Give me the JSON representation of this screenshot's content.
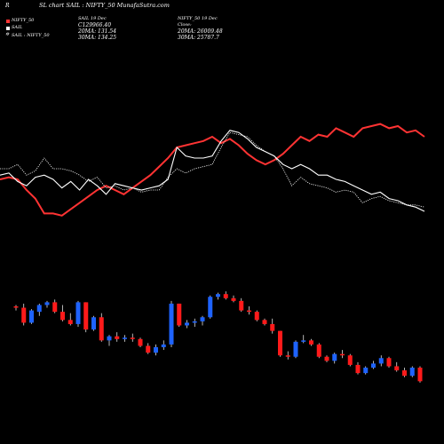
{
  "header": {
    "corner": "R",
    "title": "SL chart SAIL : NIFTY_50 MunafaSutra.com"
  },
  "legend": {
    "entry1": "NIFTY_50",
    "entry2": "SAIL",
    "entry3": "SAIL : NIFTY_50"
  },
  "sail_box": {
    "line1": "SAIL 19 Dec",
    "line2": "Close: 118.09",
    "line3": "20MA: 131.54",
    "line4": "30MA: 134.25",
    "overlap": "C129966.40"
  },
  "nifty_box": {
    "line1": "NIFTY_50 19 Dec",
    "line2": "Close:",
    "line3": "20MA: 26009.48",
    "line4": "30MA: 25787.7"
  },
  "colors": {
    "background": "#000000",
    "bull": "#1e63ff",
    "bear": "#ff1a1a",
    "ratio_line": "#ff3333",
    "sail_line": "#ffffff",
    "nifty_line": "#ffffff"
  },
  "chart_data": [
    {
      "type": "line",
      "x_count": 49,
      "series": [
        {
          "style": "red-thick",
          "values": [
            55,
            56,
            55,
            50,
            46,
            39,
            39,
            38,
            41,
            44,
            47,
            50,
            52,
            50,
            48,
            51,
            54,
            57,
            61,
            65,
            70,
            71,
            72,
            73,
            75,
            72,
            74,
            71,
            67,
            64,
            62,
            64,
            67,
            71,
            75,
            73,
            76,
            75,
            79,
            77,
            75,
            79,
            80,
            81,
            79,
            80,
            77,
            78,
            75
          ]
        },
        {
          "style": "white-solid",
          "values": [
            57,
            58,
            54,
            52,
            56,
            57,
            55,
            51,
            54,
            50,
            55,
            52,
            48,
            53,
            52,
            51,
            50,
            51,
            52,
            55,
            70,
            66,
            65,
            65,
            66,
            73,
            78,
            77,
            74,
            70,
            68,
            66,
            62,
            60,
            62,
            60,
            57,
            57,
            55,
            54,
            52,
            50,
            48,
            49,
            46,
            45,
            43,
            42,
            40
          ]
        },
        {
          "style": "white-dotted",
          "values": [
            60,
            60,
            62,
            57,
            59,
            65,
            60,
            60,
            59,
            57,
            54,
            56,
            51,
            52,
            50,
            51,
            49,
            50,
            50,
            56,
            60,
            58,
            60,
            61,
            62,
            70,
            77,
            76,
            75,
            71,
            68,
            66,
            60,
            52,
            56,
            53,
            52,
            51,
            49,
            50,
            49,
            44,
            46,
            47,
            45,
            44,
            43,
            43,
            42
          ]
        }
      ]
    },
    {
      "type": "candlestick",
      "series": [
        {
          "name": "SAIL",
          "ohlc": [
            [
              130,
              131,
              127,
              129
            ],
            [
              129,
              132,
              116,
              118
            ],
            [
              118,
              128,
              117,
              127
            ],
            [
              126,
              132,
              123,
              131
            ],
            [
              131,
              134,
              129,
              133
            ],
            [
              133,
              135,
              125,
              126
            ],
            [
              126,
              131,
              119,
              120
            ],
            [
              120,
              125,
              116,
              117
            ],
            [
              117,
              134,
              115,
              133
            ],
            [
              133,
              133,
              111,
              113
            ],
            [
              113,
              123,
              112,
              122
            ],
            [
              122,
              125,
              104,
              105
            ],
            [
              105,
              109,
              101,
              108
            ],
            [
              108,
              111,
              104,
              106
            ],
            [
              106,
              109,
              104,
              107
            ],
            [
              107,
              110,
              104,
              106
            ],
            [
              106,
              107,
              100,
              101
            ],
            [
              101,
              103,
              95,
              96
            ],
            [
              96,
              102,
              94,
              100
            ],
            [
              100,
              105,
              98,
              102
            ],
            [
              102,
              134,
              100,
              132
            ],
            [
              132,
              132,
              115,
              116
            ],
            [
              116,
              120,
              114,
              118
            ],
            [
              118,
              121,
              115,
              119
            ],
            [
              119,
              123,
              116,
              122
            ],
            [
              122,
              138,
              121,
              137
            ],
            [
              137,
              140,
              135,
              139
            ],
            [
              139,
              141,
              135,
              136
            ],
            [
              136,
              138,
              133,
              134
            ],
            [
              134,
              136,
              126,
              127
            ],
            [
              127,
              130,
              124,
              126
            ],
            [
              126,
              127,
              119,
              120
            ],
            [
              120,
              121,
              116,
              117
            ],
            [
              117,
              121,
              110,
              112
            ],
            [
              112,
              112,
              93,
              94
            ],
            [
              94,
              97,
              91,
              93
            ],
            [
              93,
              105,
              92,
              104
            ],
            [
              104,
              109,
              103,
              105
            ],
            [
              105,
              106,
              101,
              102
            ],
            [
              102,
              103,
              92,
              93
            ],
            [
              93,
              94,
              89,
              90
            ],
            [
              90,
              96,
              88,
              95
            ],
            [
              95,
              98,
              92,
              94
            ],
            [
              94,
              95,
              86,
              87
            ],
            [
              87,
              89,
              80,
              81
            ],
            [
              81,
              86,
              80,
              85
            ],
            [
              85,
              90,
              84,
              88
            ],
            [
              88,
              94,
              86,
              92
            ],
            [
              92,
              93,
              85,
              86
            ],
            [
              86,
              89,
              82,
              83
            ],
            [
              83,
              85,
              78,
              79
            ],
            [
              79,
              86,
              78,
              85
            ],
            [
              85,
              86,
              74,
              75
            ]
          ],
          "ylim": [
            70,
            145
          ]
        }
      ]
    }
  ]
}
